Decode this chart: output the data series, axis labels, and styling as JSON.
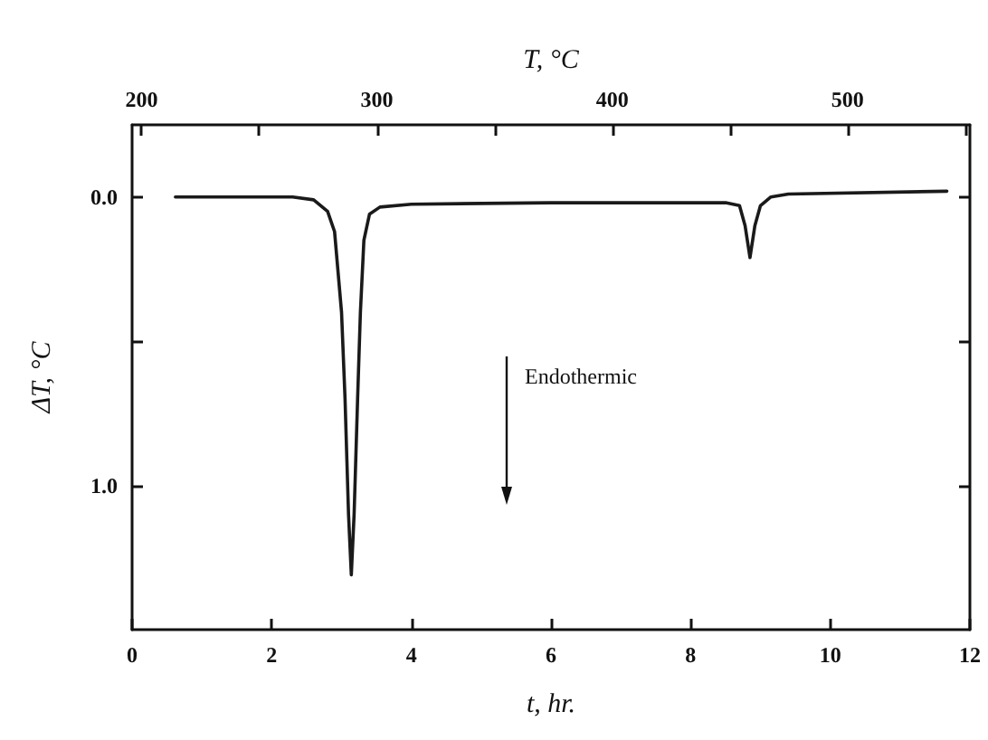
{
  "chart_data": {
    "type": "line",
    "xlabel": "t, hr.",
    "x2label": "T, °C",
    "ylabel": "ΔT, °C",
    "annotations": [
      "Endothermic"
    ],
    "series": [
      {
        "color": "#1a1a1a",
        "x": [
          0.62,
          1.5,
          2.3,
          2.6,
          2.8,
          2.9,
          3.0,
          3.05,
          3.1,
          3.14,
          3.18,
          3.23,
          3.27,
          3.32,
          3.4,
          3.55,
          4,
          6,
          8.5,
          8.7,
          8.78,
          8.85,
          8.92,
          9.0,
          9.15,
          9.4,
          11.67
        ],
        "values": [
          0,
          0,
          0,
          0.01,
          0.05,
          0.12,
          0.4,
          0.7,
          1.1,
          1.31,
          1.1,
          0.7,
          0.4,
          0.15,
          0.06,
          0.035,
          0.025,
          0.02,
          0.02,
          0.03,
          0.1,
          0.21,
          0.1,
          0.03,
          0,
          -0.01,
          -0.02
        ]
      }
    ],
    "xlim": [
      0,
      12
    ],
    "xticks": [
      0,
      2,
      4,
      6,
      8,
      10,
      12
    ],
    "x2lim": [
      196,
      552
    ],
    "x2ticks": [
      200,
      {
        "value": 250,
        "label": null
      },
      300,
      {
        "value": 350,
        "label": null
      },
      400,
      {
        "value": 450,
        "label": null
      },
      500,
      {
        "value": 550,
        "label": null
      }
    ],
    "ylim": [
      1.5,
      -0.25
    ],
    "yticks": [
      {
        "value": 0,
        "label": "0.0"
      },
      {
        "value": 0.5,
        "label": null
      },
      {
        "value": 1,
        "label": "1.0"
      }
    ],
    "grid": false,
    "marker": "none",
    "line_style": "solid"
  }
}
